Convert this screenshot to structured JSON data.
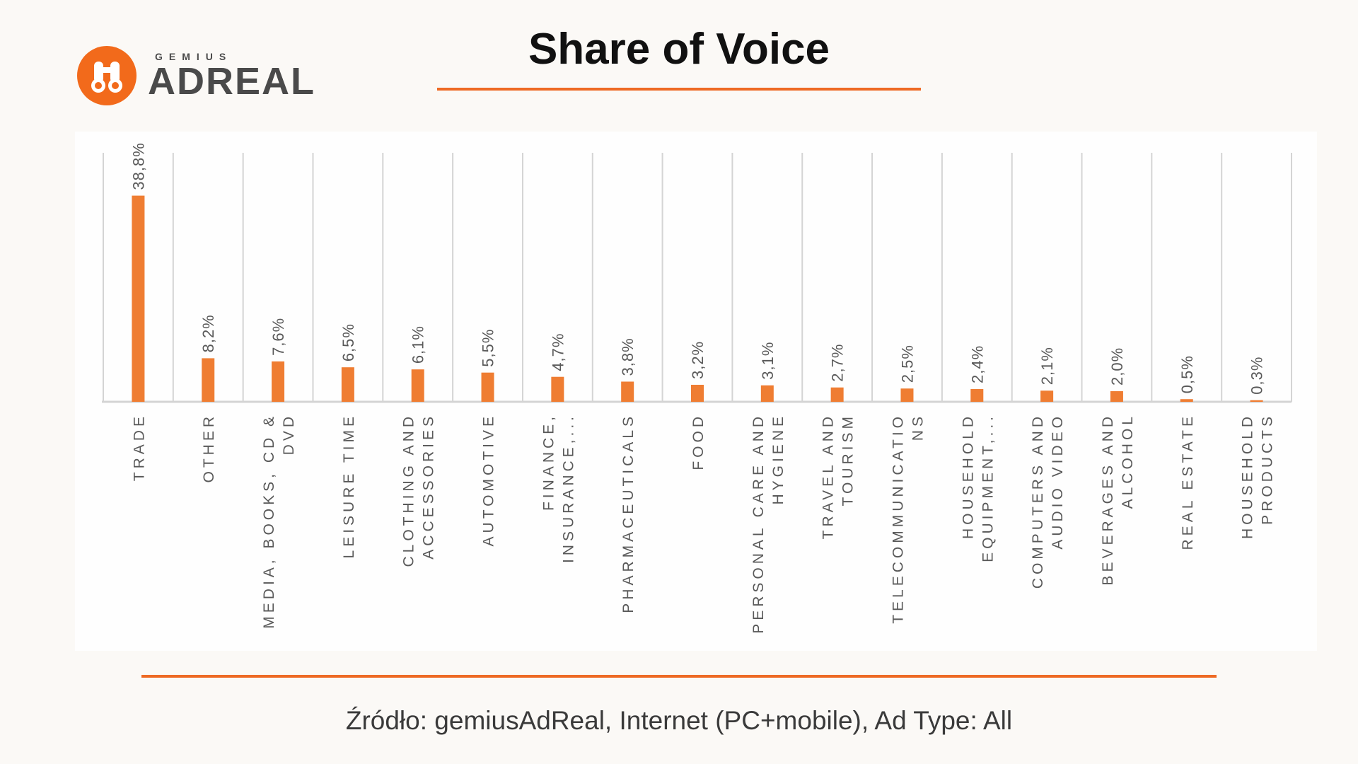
{
  "logo": {
    "small_text": "GEMIUS",
    "big_text": "ADREAL",
    "icon": "binoculars-icon"
  },
  "title": "Share of Voice",
  "source": "Źródło: gemiusAdReal, Internet (PC+mobile), Ad Type: All",
  "colors": {
    "accent": "#ee6a24",
    "bar": "#ef7d32",
    "grid": "#d4d4d4",
    "label": "#595959"
  },
  "chart_data": {
    "type": "bar",
    "title": "Share of Voice",
    "categories": [
      [
        "TRADE"
      ],
      [
        "OTHER"
      ],
      [
        "MEDIA, BOOKS, CD &",
        "DVD"
      ],
      [
        "LEISURE TIME"
      ],
      [
        "CLOTHING AND",
        "ACCESSORIES"
      ],
      [
        "AUTOMOTIVE"
      ],
      [
        "FINANCE,",
        "INSURANCE,..."
      ],
      [
        "PHARMACEUTICALS"
      ],
      [
        "FOOD"
      ],
      [
        "PERSONAL CARE AND",
        "HYGIENE"
      ],
      [
        "TRAVEL AND",
        "TOURISM"
      ],
      [
        "TELECOMMUNICATIO",
        "NS"
      ],
      [
        "HOUSEHOLD",
        "EQUIPMENT,..."
      ],
      [
        "COMPUTERS AND",
        "AUDIO VIDEO"
      ],
      [
        "BEVERAGES AND",
        "ALCOHOL"
      ],
      [
        "REAL ESTATE"
      ],
      [
        "HOUSEHOLD",
        "PRODUCTS"
      ]
    ],
    "values": [
      38.8,
      8.2,
      7.6,
      6.5,
      6.1,
      5.5,
      4.7,
      3.8,
      3.2,
      3.1,
      2.7,
      2.5,
      2.4,
      2.1,
      2.0,
      0.5,
      0.3
    ],
    "value_labels": [
      "38,8%",
      "8,2%",
      "7,6%",
      "6,5%",
      "6,1%",
      "5,5%",
      "4,7%",
      "3,8%",
      "3,2%",
      "3,1%",
      "2,7%",
      "2,5%",
      "2,4%",
      "2,1%",
      "2,0%",
      "0,5%",
      "0,3%"
    ],
    "ylim": [
      0,
      45
    ],
    "grid": "vertical",
    "legend": "none"
  }
}
